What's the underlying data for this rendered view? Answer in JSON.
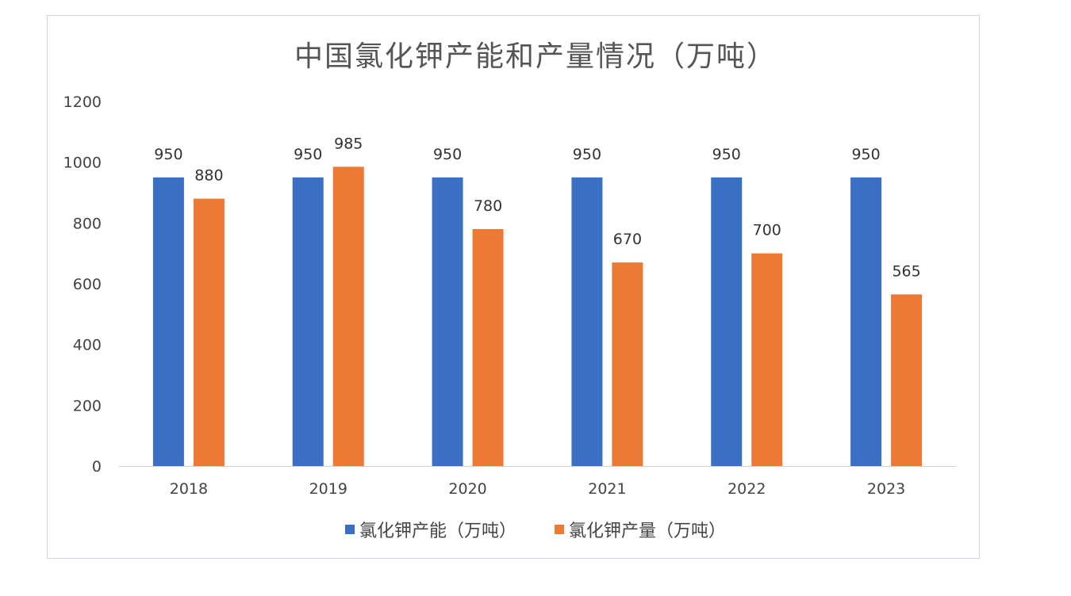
{
  "chart_data": {
    "type": "bar",
    "title": "中国氯化钾产能和产量情况（万吨）",
    "categories": [
      "2018",
      "2019",
      "2020",
      "2021",
      "2022",
      "2023"
    ],
    "series": [
      {
        "name": "氯化钾产能（万吨）",
        "values": [
          950,
          950,
          950,
          950,
          950,
          950
        ],
        "color": "#3a6fc4"
      },
      {
        "name": "氯化钾产量（万吨）",
        "values": [
          880,
          985,
          780,
          670,
          700,
          565
        ],
        "color": "#ec7a35"
      }
    ],
    "ylim": [
      0,
      1200
    ],
    "yticks": [
      "0",
      "200",
      "400",
      "600",
      "800",
      "1000",
      "1200"
    ],
    "grid": false,
    "legend_position": "bottom"
  }
}
